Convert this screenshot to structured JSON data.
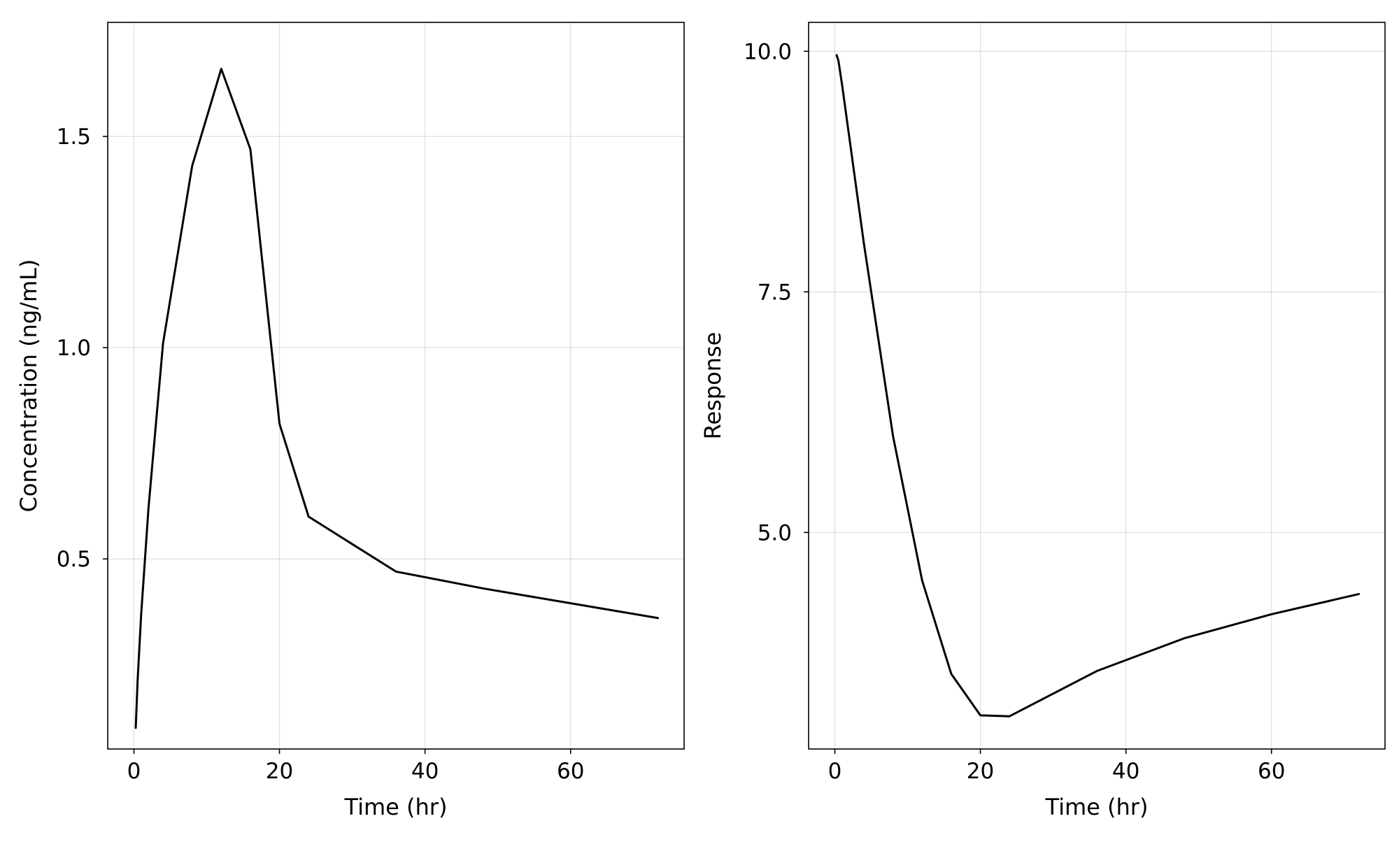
{
  "chart_data": [
    {
      "type": "line",
      "title": "",
      "xlabel": "Time (hr)",
      "ylabel": "Concentration (ng/mL)",
      "xlim": [
        -3.6,
        75.6
      ],
      "ylim": [
        0.05,
        1.77
      ],
      "xticks": [
        0,
        20,
        40,
        60
      ],
      "yticks": [
        0.5,
        1.0,
        1.5
      ],
      "xtick_labels": [
        "0",
        "20",
        "40",
        "60"
      ],
      "ytick_labels": [
        "0.5",
        "1.0",
        "1.5"
      ],
      "grid": true,
      "legend": "none",
      "series": [
        {
          "name": "Concentration",
          "color": "#000000",
          "x": [
            0.25,
            0.5,
            1,
            2,
            4,
            8,
            12,
            16,
            20,
            24,
            36,
            48,
            72
          ],
          "y": [
            0.1,
            0.21,
            0.37,
            0.62,
            1.01,
            1.43,
            1.66,
            1.47,
            0.82,
            0.6,
            0.47,
            0.43,
            0.36
          ]
        }
      ]
    },
    {
      "type": "line",
      "title": "",
      "xlabel": "Time (hr)",
      "ylabel": "Response",
      "xlim": [
        -3.6,
        75.6
      ],
      "ylim": [
        2.75,
        10.3
      ],
      "xticks": [
        0,
        20,
        40,
        60
      ],
      "yticks": [
        5.0,
        7.5,
        10.0
      ],
      "xtick_labels": [
        "0",
        "20",
        "40",
        "60"
      ],
      "ytick_labels": [
        "5.0",
        "7.5",
        "10.0"
      ],
      "grid": true,
      "legend": "none",
      "series": [
        {
          "name": "Response",
          "color": "#000000",
          "x": [
            0.25,
            0.5,
            1,
            2,
            4,
            8,
            12,
            16,
            20,
            24,
            36,
            48,
            60,
            72
          ],
          "y": [
            9.96,
            9.9,
            9.65,
            9.1,
            8.0,
            6.0,
            4.5,
            3.53,
            3.1,
            3.09,
            3.56,
            3.9,
            4.15,
            4.36
          ]
        }
      ]
    }
  ]
}
